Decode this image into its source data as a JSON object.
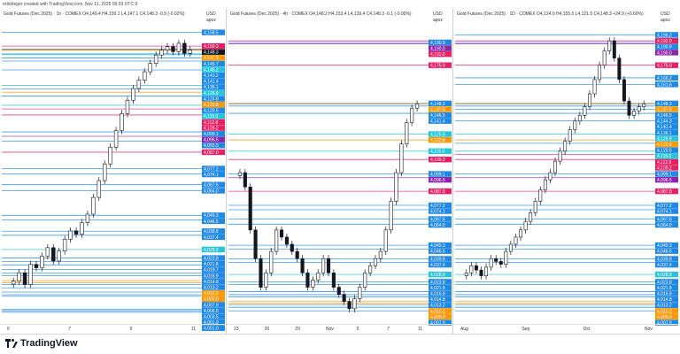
{
  "header": {
    "credit": "erikdreger created with TradingView.com, Nov 11, 2025 09:03 UTC-5"
  },
  "footer": {
    "brand": "TradingView"
  },
  "chart_data": [
    {
      "type": "candlestick",
      "title": "Gold Futures (Dec 2025) · 1h · COMEX O4,149.4 H4,150.1 L4,147.1 C4,148.3 -0.9 (-0.02%)",
      "currency": "USD",
      "unit_label": "apoz",
      "x_ticks": [
        "6",
        "7",
        "9",
        "11"
      ],
      "y_range": [
        3985,
        4162
      ],
      "close_series": [
        4010,
        4015,
        4008,
        4020,
        4018,
        4025,
        4030,
        4022,
        4028,
        4035,
        4040,
        4038,
        4045,
        4050,
        4060,
        4070,
        4080,
        4090,
        4100,
        4110,
        4118,
        4125,
        4130,
        4135,
        4140,
        4145,
        4148,
        4150,
        4147,
        4152,
        4146,
        4148
      ],
      "levels": [
        {
          "value": 4158.5,
          "color": "#1e88e5"
        },
        {
          "value": 4150.3,
          "color": "#e91e63"
        },
        {
          "value": 4148.3,
          "color": "#131722"
        },
        {
          "value": 4147.9,
          "color": "#ff9800"
        },
        {
          "value": 4145.7,
          "color": "#1e88e5"
        },
        {
          "value": 4145.2,
          "color": "#26c6da"
        },
        {
          "value": 4143.2,
          "color": "#1e88e5"
        },
        {
          "value": 4141.4,
          "color": "#1e88e5"
        },
        {
          "value": 4136.1,
          "color": "#1e88e5"
        },
        {
          "value": 4126.9,
          "color": "#26c6da"
        },
        {
          "value": 4124.8,
          "color": "#1e88e5"
        },
        {
          "value": 4122.8,
          "color": "#ff9800"
        },
        {
          "value": 4120.5,
          "color": "#1e88e5"
        },
        {
          "value": 4115.0,
          "color": "#26c6da"
        },
        {
          "value": 4112.8,
          "color": "#e91e63"
        },
        {
          "value": 4109.2,
          "color": "#e91e63"
        },
        {
          "value": 4099.1,
          "color": "#1e88e5"
        },
        {
          "value": 4096.5,
          "color": "#8e24aa"
        },
        {
          "value": 4093.5,
          "color": "#1e88e5"
        },
        {
          "value": 4087.0,
          "color": "#e91e63"
        },
        {
          "value": 4077.2,
          "color": "#1e88e5"
        },
        {
          "value": 4074.1,
          "color": "#1e88e5"
        },
        {
          "value": 4067.6,
          "color": "#1e88e5"
        },
        {
          "value": 4064.0,
          "color": "#1e88e5"
        },
        {
          "value": 4049.3,
          "color": "#1e88e5"
        },
        {
          "value": 4046.5,
          "color": "#1e88e5"
        },
        {
          "value": 4039.8,
          "color": "#1e88e5"
        },
        {
          "value": 4037.4,
          "color": "#1e88e5"
        },
        {
          "value": 4028.9,
          "color": "#26c6da"
        },
        {
          "value": 4023.8,
          "color": "#1e88e5"
        },
        {
          "value": 4021.8,
          "color": "#1e88e5"
        },
        {
          "value": 4019.7,
          "color": "#1e88e5"
        },
        {
          "value": 4016.9,
          "color": "#1e88e5"
        },
        {
          "value": 4014.8,
          "color": "#1e88e5"
        },
        {
          "value": 4013.2,
          "color": "#1e88e5"
        },
        {
          "value": 4010.3,
          "color": "#ff9800"
        },
        {
          "value": 4009.0,
          "color": "#ff9800"
        },
        {
          "value": 4007.9,
          "color": "#1e88e5"
        },
        {
          "value": 4006.0,
          "color": "#1e88e5"
        },
        {
          "value": 4003.5,
          "color": "#1e88e5"
        },
        {
          "value": 4001.9,
          "color": "#1e88e5"
        },
        {
          "value": 4001.0,
          "color": "#1e88e5"
        },
        {
          "value": 3993.1,
          "color": "#1e88e5"
        },
        {
          "value": 3992.3,
          "color": "#1e88e5"
        },
        {
          "value": 3991.4,
          "color": "#1e88e5"
        }
      ]
    },
    {
      "type": "candlestick",
      "title": "Gold Futures (Dec 2025) · 4h · COMEX O4,148.2 H4,153.4 L4,139.4 C4,148.3 -0.1 (-0.00%)",
      "currency": "USD",
      "unit_label": "apoz",
      "x_ticks": [
        "23",
        "26",
        "29",
        "Nov",
        "5",
        "7",
        "11"
      ],
      "y_range": [
        3995,
        4202
      ],
      "close_series": [
        4100,
        4090,
        4060,
        4040,
        4020,
        4030,
        4045,
        4060,
        4055,
        4050,
        4045,
        4040,
        4030,
        4020,
        4025,
        4030,
        4040,
        4030,
        4020,
        4015,
        4010,
        4005,
        4012,
        4020,
        4030,
        4035,
        4040,
        4045,
        4060,
        4080,
        4100,
        4120,
        4135,
        4145,
        4148
      ],
      "levels": [
        {
          "value": 4190.9,
          "color": "#1e88e5"
        },
        {
          "value": 4190.0,
          "color": "#8e24aa"
        },
        {
          "value": 4192.0,
          "color": "#e91e63"
        },
        {
          "value": 4175.0,
          "color": "#e91e63"
        },
        {
          "value": 4148.3,
          "color": "#1e88e5"
        },
        {
          "value": 4147.9,
          "color": "#ff9800"
        },
        {
          "value": 4146.5,
          "color": "#1e88e5"
        },
        {
          "value": 4141.4,
          "color": "#1e88e5"
        },
        {
          "value": 4126.9,
          "color": "#26c6da"
        },
        {
          "value": 4122.8,
          "color": "#ff9800"
        },
        {
          "value": 4115.0,
          "color": "#26c6da"
        },
        {
          "value": 4109.2,
          "color": "#e91e63"
        },
        {
          "value": 4099.1,
          "color": "#1e88e5"
        },
        {
          "value": 4096.5,
          "color": "#8e24aa"
        },
        {
          "value": 4087.0,
          "color": "#e91e63"
        },
        {
          "value": 4077.2,
          "color": "#1e88e5"
        },
        {
          "value": 4074.1,
          "color": "#1e88e5"
        },
        {
          "value": 4067.6,
          "color": "#1e88e5"
        },
        {
          "value": 4064.0,
          "color": "#1e88e5"
        },
        {
          "value": 4049.3,
          "color": "#1e88e5"
        },
        {
          "value": 4046.5,
          "color": "#1e88e5"
        },
        {
          "value": 4039.8,
          "color": "#1e88e5"
        },
        {
          "value": 4037.4,
          "color": "#1e88e5"
        },
        {
          "value": 4028.9,
          "color": "#26c6da"
        },
        {
          "value": 4023.8,
          "color": "#1e88e5"
        },
        {
          "value": 4021.8,
          "color": "#1e88e5"
        },
        {
          "value": 4016.9,
          "color": "#1e88e5"
        },
        {
          "value": 4014.8,
          "color": "#1e88e5"
        },
        {
          "value": 4013.2,
          "color": "#1e88e5"
        },
        {
          "value": 4010.3,
          "color": "#ff9800"
        },
        {
          "value": 4009.0,
          "color": "#ff9800"
        },
        {
          "value": 4007.9,
          "color": "#1e88e5"
        },
        {
          "value": 4006.0,
          "color": "#1e88e5"
        },
        {
          "value": 4003.5,
          "color": "#1e88e5"
        }
      ]
    },
    {
      "type": "candlestick",
      "title": "Gold Futures (Dec 2025) · 1D · COMEX O4,124.0 H4,155.0 L4,121.5 C4,148.3 +24.9 (+0.60%)",
      "currency": "USD",
      "unit_label": "apoz",
      "x_ticks": [
        "Aug",
        "Sep",
        "Oct",
        "Nov"
      ],
      "y_range": [
        3995,
        4202
      ],
      "close_series": [
        4030,
        4035,
        4032,
        4028,
        4034,
        4040,
        4038,
        4036,
        4045,
        4050,
        4055,
        4060,
        4066,
        4072,
        4080,
        4088,
        4095,
        4100,
        4108,
        4115,
        4122,
        4130,
        4136,
        4140,
        4146,
        4155,
        4165,
        4175,
        4185,
        4192,
        4180,
        4165,
        4150,
        4140,
        4143,
        4146,
        4148
      ],
      "levels": [
        {
          "value": 4196.2,
          "color": "#1e88e5"
        },
        {
          "value": 4192.0,
          "color": "#e91e63"
        },
        {
          "value": 4190.9,
          "color": "#1e88e5"
        },
        {
          "value": 4190.0,
          "color": "#8e24aa"
        },
        {
          "value": 4175.0,
          "color": "#e91e63"
        },
        {
          "value": 4166.2,
          "color": "#1e88e5"
        },
        {
          "value": 4161.6,
          "color": "#1e88e5"
        },
        {
          "value": 4148.3,
          "color": "#1e88e5"
        },
        {
          "value": 4147.9,
          "color": "#ff9800"
        },
        {
          "value": 4146.5,
          "color": "#1e88e5"
        },
        {
          "value": 4144.3,
          "color": "#1e88e5"
        },
        {
          "value": 4141.4,
          "color": "#1e88e5"
        },
        {
          "value": 4136.1,
          "color": "#1e88e5"
        },
        {
          "value": 4126.9,
          "color": "#26c6da"
        },
        {
          "value": 4122.8,
          "color": "#ff9800"
        },
        {
          "value": 4120.5,
          "color": "#1e88e5"
        },
        {
          "value": 4115.0,
          "color": "#26c6da"
        },
        {
          "value": 4112.8,
          "color": "#e91e63"
        },
        {
          "value": 4109.2,
          "color": "#e91e63"
        },
        {
          "value": 4099.1,
          "color": "#1e88e5"
        },
        {
          "value": 4096.5,
          "color": "#8e24aa"
        },
        {
          "value": 4087.0,
          "color": "#e91e63"
        },
        {
          "value": 4077.2,
          "color": "#1e88e5"
        },
        {
          "value": 4074.1,
          "color": "#1e88e5"
        },
        {
          "value": 4067.6,
          "color": "#1e88e5"
        },
        {
          "value": 4064.0,
          "color": "#1e88e5"
        },
        {
          "value": 4049.3,
          "color": "#1e88e5"
        },
        {
          "value": 4046.5,
          "color": "#1e88e5"
        },
        {
          "value": 4039.8,
          "color": "#1e88e5"
        },
        {
          "value": 4037.4,
          "color": "#1e88e5"
        },
        {
          "value": 4028.9,
          "color": "#26c6da"
        },
        {
          "value": 4023.8,
          "color": "#1e88e5"
        },
        {
          "value": 4021.8,
          "color": "#1e88e5"
        },
        {
          "value": 4016.9,
          "color": "#1e88e5"
        },
        {
          "value": 4014.8,
          "color": "#1e88e5"
        },
        {
          "value": 4013.2,
          "color": "#1e88e5"
        },
        {
          "value": 4010.3,
          "color": "#ff9800"
        },
        {
          "value": 4009.0,
          "color": "#ff9800"
        },
        {
          "value": 4007.9,
          "color": "#1e88e5"
        },
        {
          "value": 4006.0,
          "color": "#1e88e5"
        },
        {
          "value": 4003.5,
          "color": "#1e88e5"
        }
      ]
    }
  ]
}
